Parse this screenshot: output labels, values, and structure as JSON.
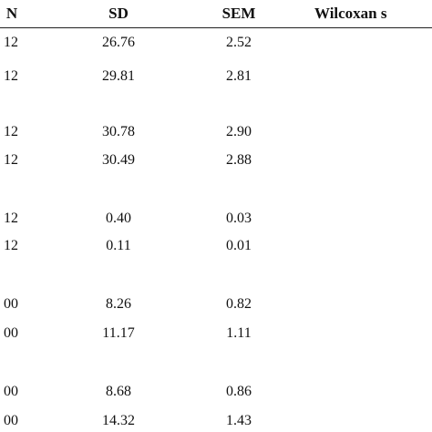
{
  "table": {
    "header": [
      "N",
      "SD",
      "SEM",
      "Wilcoxan s"
    ],
    "rows": [
      [
        "12",
        "26.76",
        "2.52"
      ],
      [
        "12",
        "29.81",
        "2.81"
      ],
      [
        "12",
        "30.78",
        "2.90"
      ],
      [
        "12",
        "30.49",
        "2.88"
      ],
      [
        "12",
        "0.40",
        "0.03"
      ],
      [
        "12",
        "0.11",
        "0.01"
      ],
      [
        "00",
        "8.26",
        "0.82"
      ],
      [
        "00",
        "11.17",
        "1.11"
      ],
      [
        "00",
        "8.68",
        "0.86"
      ],
      [
        "00",
        "14.32",
        "1.43"
      ]
    ]
  }
}
